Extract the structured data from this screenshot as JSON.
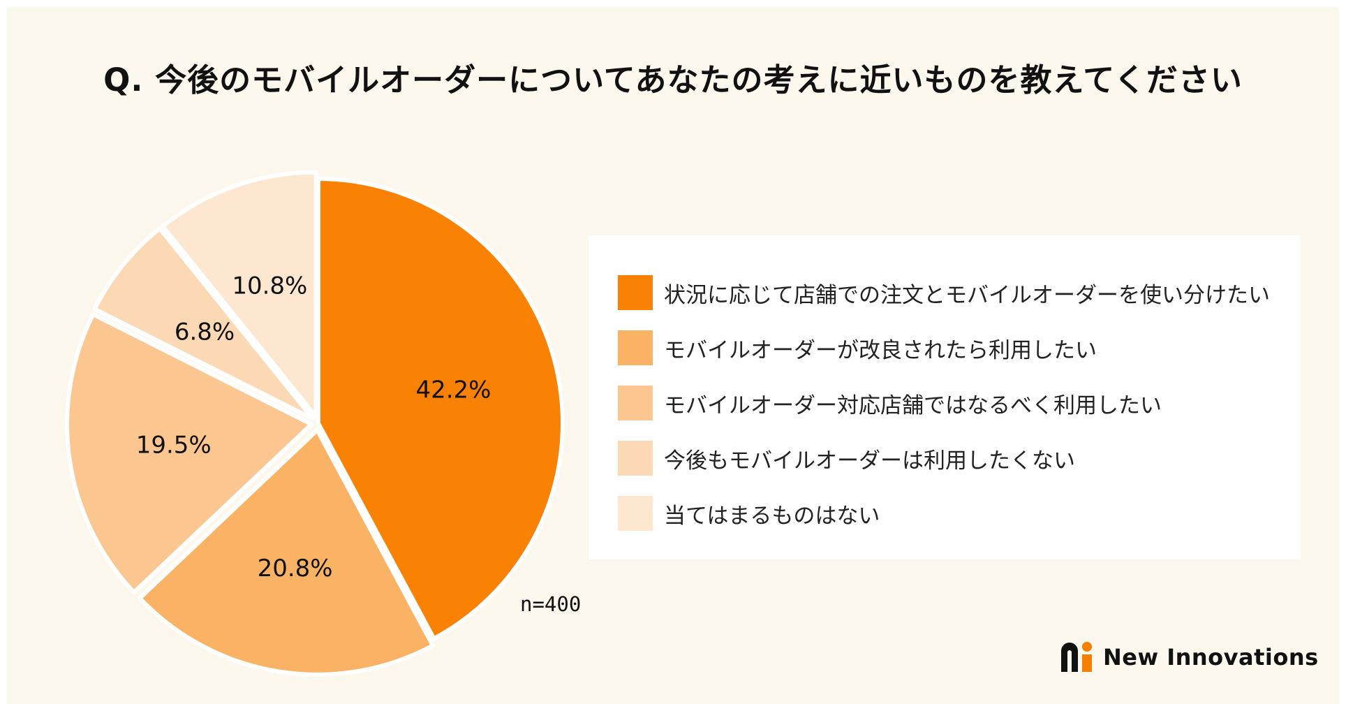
{
  "title": "Q. 今後のモバイルオーダーについてあなたの考えに近いものを教えてください",
  "sample_size": "n=400",
  "brand": {
    "name": "New Innovations",
    "logo_icon": "ni-logo-icon",
    "accent": "#f57f00"
  },
  "colors": {
    "background": "#fdf8ee",
    "legend_background": "#ffffff"
  },
  "chart_data": {
    "type": "pie",
    "title": "Q. 今後のモバイルオーダーについてあなたの考えに近いものを教えてください",
    "start_angle": "12 o'clock",
    "direction": "clockwise",
    "slices": [
      {
        "label": "状況に応じて店舗での注文とモバイルオーダーを使い分けたい",
        "value": 42.2,
        "display": "42.2%",
        "color": "#f98205",
        "exploded": false
      },
      {
        "label": "モバイルオーダーが改良されたら利用したい",
        "value": 20.8,
        "display": "20.8%",
        "color": "#fab265",
        "exploded": true
      },
      {
        "label": "モバイルオーダー対応店舗ではなるべく利用したい",
        "value": 19.5,
        "display": "19.5%",
        "color": "#fcc690",
        "exploded": true
      },
      {
        "label": "今後もモバイルオーダーは利用したくない",
        "value": 6.8,
        "display": "6.8%",
        "color": "#fcd9b5",
        "exploded": true
      },
      {
        "label": "当てはまるものはない",
        "value": 10.8,
        "display": "10.8%",
        "color": "#fde7d0",
        "exploded": true
      }
    ],
    "legend_position": "right"
  }
}
